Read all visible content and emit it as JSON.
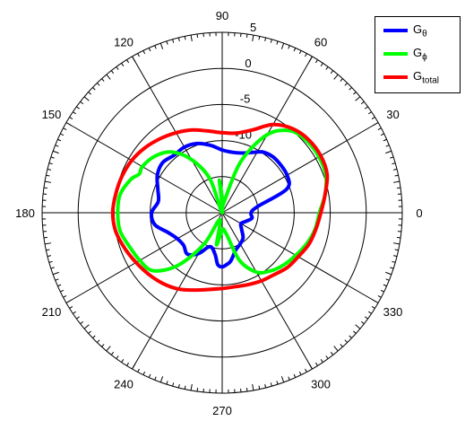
{
  "chart_data": {
    "type": "polar-line",
    "title": "",
    "angular_ticks": [
      "0",
      "30",
      "60",
      "90",
      "120",
      "150",
      "180",
      "210",
      "240",
      "270",
      "300",
      "330"
    ],
    "radial_ticks": [
      "5",
      "0",
      "-5",
      "-10"
    ],
    "r_range": [
      -20,
      5
    ],
    "grid": true,
    "legend_position": "top-right",
    "series": [
      {
        "name_main": "G",
        "name_sub": "θ",
        "color": "#0000ff",
        "angles": [
          0,
          10,
          20,
          30,
          45,
          55,
          62,
          70,
          80,
          90,
          100,
          110,
          120,
          130,
          140,
          150,
          160,
          170,
          180,
          190,
          200,
          210,
          220,
          230,
          240,
          250,
          260,
          265,
          270,
          275,
          280,
          290,
          300,
          310,
          320,
          330,
          340,
          350
        ],
        "values": [
          -16,
          -15,
          -10.5,
          -9.6,
          -9.5,
          -9.8,
          -10.5,
          -11.2,
          -11.5,
          -11.3,
          -10.5,
          -9.8,
          -9.5,
          -9.6,
          -9.2,
          -9.6,
          -10.5,
          -11,
          -10.2,
          -10.5,
          -12,
          -12.8,
          -13,
          -12.5,
          -13.5,
          -15,
          -14.2,
          -12.8,
          -12.5,
          -12.8,
          -13.2,
          -14.5,
          -15,
          -15.5,
          -16.5,
          -17,
          -16.5,
          -15.8
        ]
      },
      {
        "name_main": "G",
        "name_sub": "ϕ",
        "color": "#00ff00",
        "angles": [
          0,
          10,
          20,
          30,
          40,
          50,
          60,
          70,
          80,
          85,
          90,
          95,
          100,
          110,
          120,
          130,
          140,
          150,
          155,
          160,
          170,
          180,
          190,
          200,
          210,
          220,
          230,
          240,
          250,
          260,
          270,
          280,
          290,
          300,
          310,
          320,
          330,
          340,
          350
        ],
        "values": [
          -6.5,
          -5.5,
          -4.7,
          -4.5,
          -4.6,
          -5.2,
          -7.5,
          -12.5,
          -18.5,
          -19.5,
          -18,
          -15.5,
          -20,
          -15,
          -11.5,
          -9,
          -7.8,
          -7.2,
          -7.3,
          -6.5,
          -5.6,
          -5.5,
          -5.6,
          -6.3,
          -6.8,
          -7.5,
          -10.5,
          -15,
          -19,
          -15.5,
          -17.5,
          -17.2,
          -13,
          -10.5,
          -9.5,
          -8.8,
          -8.2,
          -7.5,
          -6.9
        ]
      },
      {
        "name_main": "G",
        "name_sub": "total",
        "color": "#ff0000",
        "angles": [
          0,
          10,
          20,
          30,
          40,
          50,
          60,
          70,
          80,
          90,
          100,
          110,
          120,
          130,
          140,
          150,
          160,
          170,
          180,
          190,
          200,
          210,
          220,
          230,
          240,
          250,
          260,
          270,
          280,
          290,
          300,
          310,
          320,
          330,
          340,
          350
        ],
        "values": [
          -6.3,
          -5.5,
          -4.5,
          -4.2,
          -4.3,
          -4.8,
          -5.9,
          -7.8,
          -8.8,
          -8.9,
          -8.5,
          -7.8,
          -7.2,
          -6.6,
          -6,
          -5.5,
          -5.2,
          -5,
          -4.8,
          -5,
          -5.6,
          -6.2,
          -6.7,
          -7.2,
          -7.8,
          -8.6,
          -9.2,
          -9.5,
          -9.6,
          -9.4,
          -9.1,
          -8.8,
          -8.2,
          -7.8,
          -7.2,
          -6.8
        ]
      }
    ]
  }
}
